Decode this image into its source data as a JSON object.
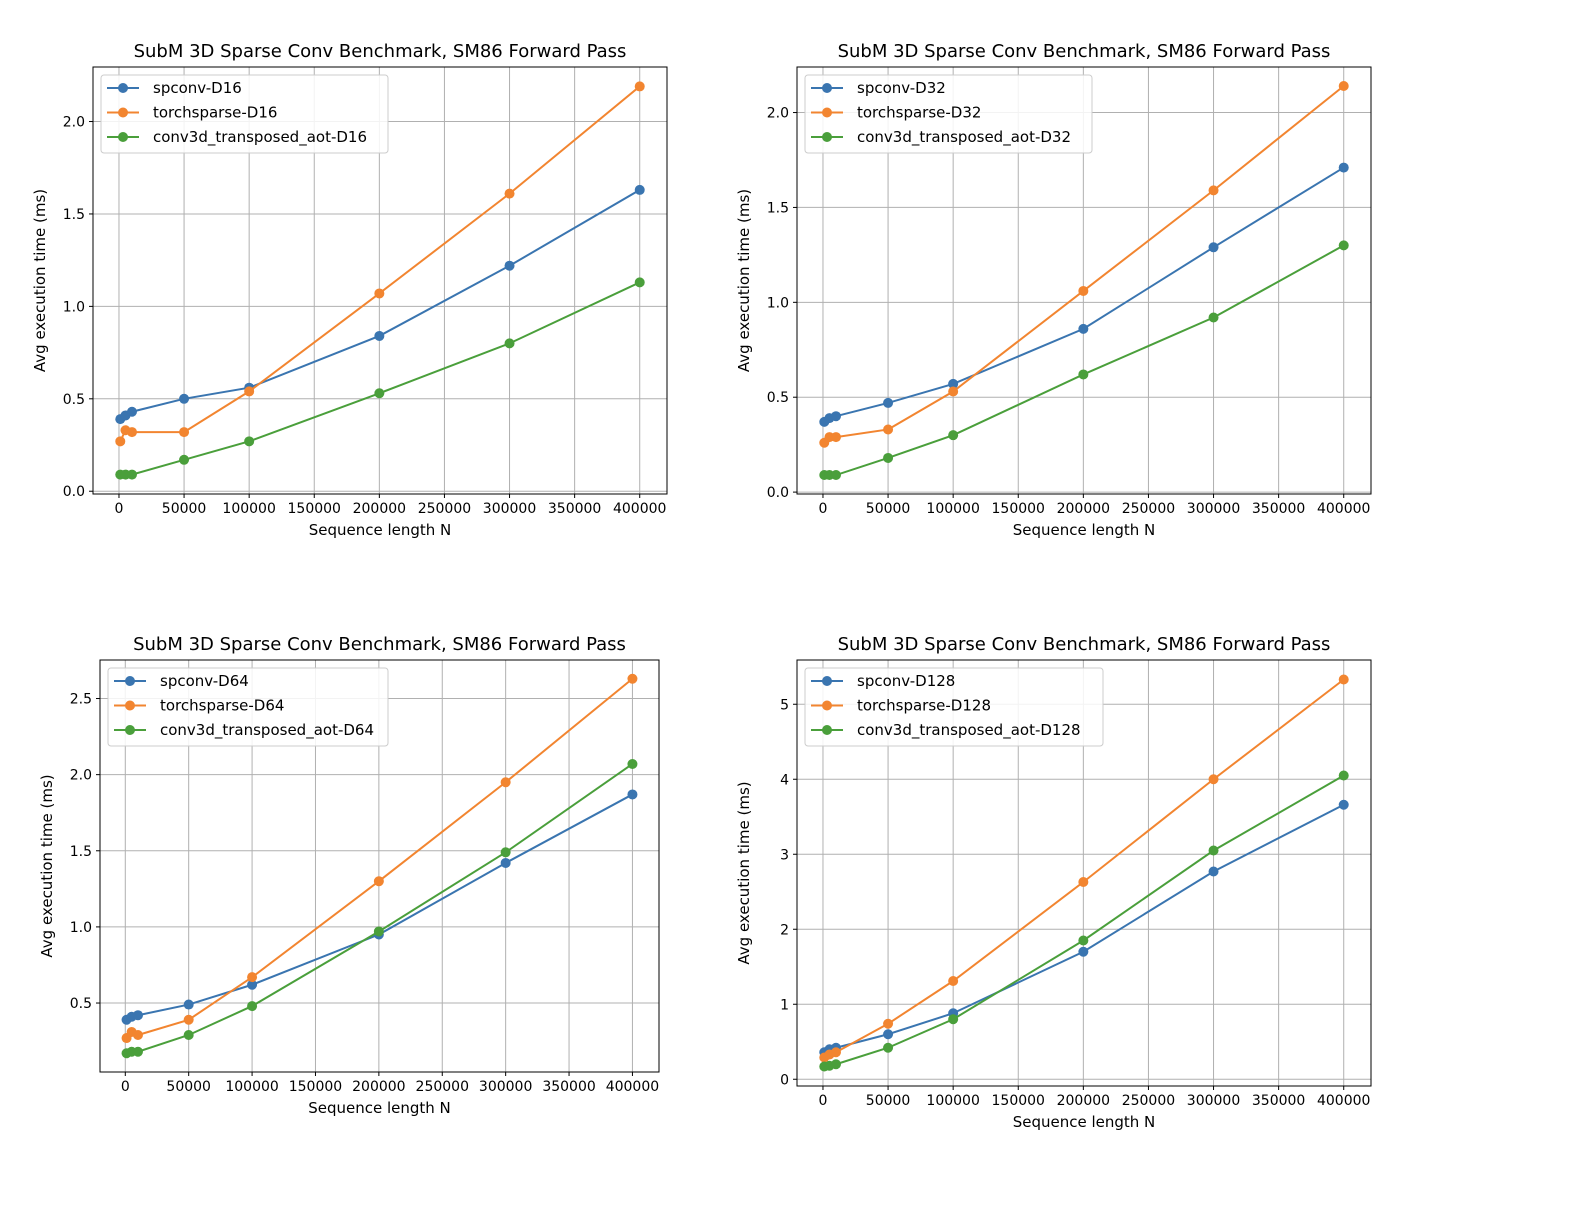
{
  "colors": {
    "spconv": "#3a75b0",
    "torchsparse": "#f28530",
    "conv3d": "#4a9f3b",
    "grid": "#b0b0b0"
  },
  "chart_data": [
    {
      "type": "line",
      "title": "SubM 3D Sparse Conv Benchmark, SM86 Forward Pass",
      "xlabel": "Sequence length N",
      "ylabel": "Avg execution time (ms)",
      "grid": true,
      "legend": "upper-left",
      "x": [
        1000,
        5000,
        10000,
        50000,
        100000,
        200000,
        300000,
        400000
      ],
      "xlim": [
        -19950,
        420950
      ],
      "ylim": [
        -0.015,
        2.295
      ],
      "xticks": [
        0,
        50000,
        100000,
        150000,
        200000,
        250000,
        300000,
        350000,
        400000
      ],
      "yticks": [
        "0.0",
        "0.5",
        "1.0",
        "1.5",
        "2.0"
      ],
      "series": [
        {
          "name": "spconv-D16",
          "values": [
            0.39,
            0.41,
            0.43,
            0.5,
            0.56,
            0.84,
            1.22,
            1.63
          ]
        },
        {
          "name": "torchsparse-D16",
          "values": [
            0.27,
            0.33,
            0.32,
            0.32,
            0.54,
            1.07,
            1.61,
            2.19
          ]
        },
        {
          "name": "conv3d_transposed_aot-D16",
          "values": [
            0.09,
            0.09,
            0.09,
            0.17,
            0.27,
            0.53,
            0.8,
            1.13
          ]
        }
      ]
    },
    {
      "type": "line",
      "title": "SubM 3D Sparse Conv Benchmark, SM86 Forward Pass",
      "xlabel": "Sequence length N",
      "ylabel": "Avg execution time (ms)",
      "grid": true,
      "legend": "upper-left",
      "x": [
        1000,
        5000,
        10000,
        50000,
        100000,
        200000,
        300000,
        400000
      ],
      "xlim": [
        -19950,
        420950
      ],
      "ylim": [
        -0.01,
        2.24
      ],
      "xticks": [
        0,
        50000,
        100000,
        150000,
        200000,
        250000,
        300000,
        350000,
        400000
      ],
      "yticks": [
        "0.0",
        "0.5",
        "1.0",
        "1.5",
        "2.0"
      ],
      "series": [
        {
          "name": "spconv-D32",
          "values": [
            0.37,
            0.39,
            0.4,
            0.47,
            0.57,
            0.86,
            1.29,
            1.71
          ]
        },
        {
          "name": "torchsparse-D32",
          "values": [
            0.26,
            0.29,
            0.29,
            0.33,
            0.53,
            1.06,
            1.59,
            2.14
          ]
        },
        {
          "name": "conv3d_transposed_aot-D32",
          "values": [
            0.09,
            0.09,
            0.09,
            0.18,
            0.3,
            0.62,
            0.92,
            1.3
          ]
        }
      ]
    },
    {
      "type": "line",
      "title": "SubM 3D Sparse Conv Benchmark, SM86 Forward Pass",
      "xlabel": "Sequence length N",
      "ylabel": "Avg execution time (ms)",
      "grid": true,
      "legend": "upper-left",
      "x": [
        1000,
        5000,
        10000,
        50000,
        100000,
        200000,
        300000,
        400000
      ],
      "xlim": [
        -19950,
        420950
      ],
      "ylim": [
        0.047,
        2.753
      ],
      "xticks": [
        0,
        50000,
        100000,
        150000,
        200000,
        250000,
        300000,
        350000,
        400000
      ],
      "yticks": [
        "0.5",
        "1.0",
        "1.5",
        "2.0",
        "2.5"
      ],
      "series": [
        {
          "name": "spconv-D64",
          "values": [
            0.39,
            0.41,
            0.42,
            0.49,
            0.62,
            0.95,
            1.42,
            1.87
          ]
        },
        {
          "name": "torchsparse-D64",
          "values": [
            0.27,
            0.31,
            0.29,
            0.39,
            0.67,
            1.3,
            1.95,
            2.63
          ]
        },
        {
          "name": "conv3d_transposed_aot-D64",
          "values": [
            0.17,
            0.18,
            0.18,
            0.29,
            0.48,
            0.97,
            1.49,
            2.07
          ]
        }
      ]
    },
    {
      "type": "line",
      "title": "SubM 3D Sparse Conv Benchmark, SM86 Forward Pass",
      "xlabel": "Sequence length N",
      "ylabel": "Avg execution time (ms)",
      "grid": true,
      "legend": "upper-left",
      "x": [
        1000,
        5000,
        10000,
        50000,
        100000,
        200000,
        300000,
        400000
      ],
      "xlim": [
        -19950,
        420950
      ],
      "ylim": [
        -0.09,
        5.59
      ],
      "xticks": [
        0,
        50000,
        100000,
        150000,
        200000,
        250000,
        300000,
        350000,
        400000
      ],
      "yticks": [
        "0",
        "1",
        "2",
        "3",
        "4",
        "5"
      ],
      "series": [
        {
          "name": "spconv-D128",
          "values": [
            0.36,
            0.4,
            0.42,
            0.6,
            0.88,
            1.7,
            2.77,
            3.66
          ]
        },
        {
          "name": "torchsparse-D128",
          "values": [
            0.29,
            0.33,
            0.36,
            0.74,
            1.31,
            2.63,
            4.0,
            5.33
          ]
        },
        {
          "name": "conv3d_transposed_aot-D128",
          "values": [
            0.17,
            0.18,
            0.2,
            0.42,
            0.8,
            1.85,
            3.05,
            4.05
          ]
        }
      ]
    }
  ]
}
